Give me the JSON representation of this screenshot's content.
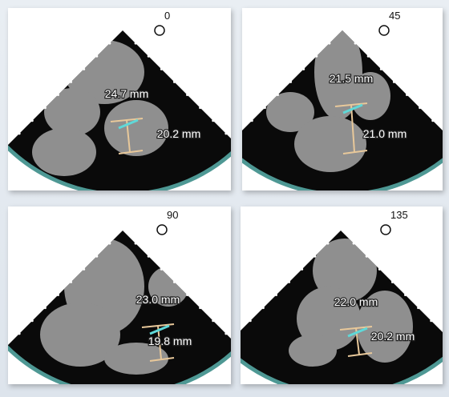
{
  "panels": [
    {
      "angle": "0",
      "measurements": [
        "24.7 mm",
        "20.2 mm"
      ]
    },
    {
      "angle": "45",
      "measurements": [
        "21.5 mm",
        "21.0 mm"
      ]
    },
    {
      "angle": "90",
      "measurements": [
        "23.0 mm",
        "19.8 mm"
      ]
    },
    {
      "angle": "135",
      "measurements": [
        "22.0 mm",
        "20.2 mm"
      ]
    }
  ]
}
